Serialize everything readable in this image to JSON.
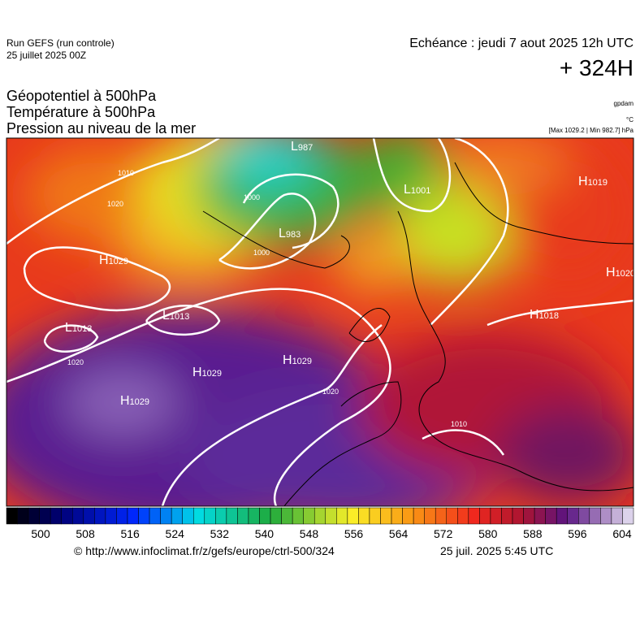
{
  "header": {
    "run": "Run GEFS (run controle)",
    "run_date": "25 juillet 2025 00Z",
    "valid": "Echéance : jeudi 7 aout 2025 12h UTC",
    "lead": "+ 324H"
  },
  "titles": [
    "Géopotentiel à 500hPa",
    "Température à 500hPa",
    "Pression au niveau de la mer"
  ],
  "units": {
    "geopotential": "gpdam",
    "temperature": "°C",
    "pressure": "[Max 1029.2 | Min 982.7] hPa"
  },
  "centers": [
    {
      "type": "L",
      "value": 987
    },
    {
      "type": "L",
      "value": 1001
    },
    {
      "type": "L",
      "value": 983
    },
    {
      "type": "H",
      "value": 1019
    },
    {
      "type": "H",
      "value": 1029
    },
    {
      "type": "L",
      "value": 1013
    },
    {
      "type": "L",
      "value": 1013
    },
    {
      "type": "H",
      "value": 1018
    },
    {
      "type": "H",
      "value": 1029
    },
    {
      "type": "H",
      "value": 1029
    },
    {
      "type": "H",
      "value": 1029
    },
    {
      "type": "H",
      "value": 1020
    }
  ],
  "isobar_labels": [
    1010,
    1020,
    1000,
    1000,
    1020,
    1020,
    1010
  ],
  "colorbar_labels": [
    500,
    508,
    516,
    524,
    532,
    540,
    548,
    556,
    564,
    572,
    580,
    588,
    596,
    604
  ],
  "footer": {
    "source": "© http://www.infoclimat.fr/z/gefs/europe/ctrl-500/324",
    "generated": "25 juil. 2025  5:45 UTC"
  }
}
